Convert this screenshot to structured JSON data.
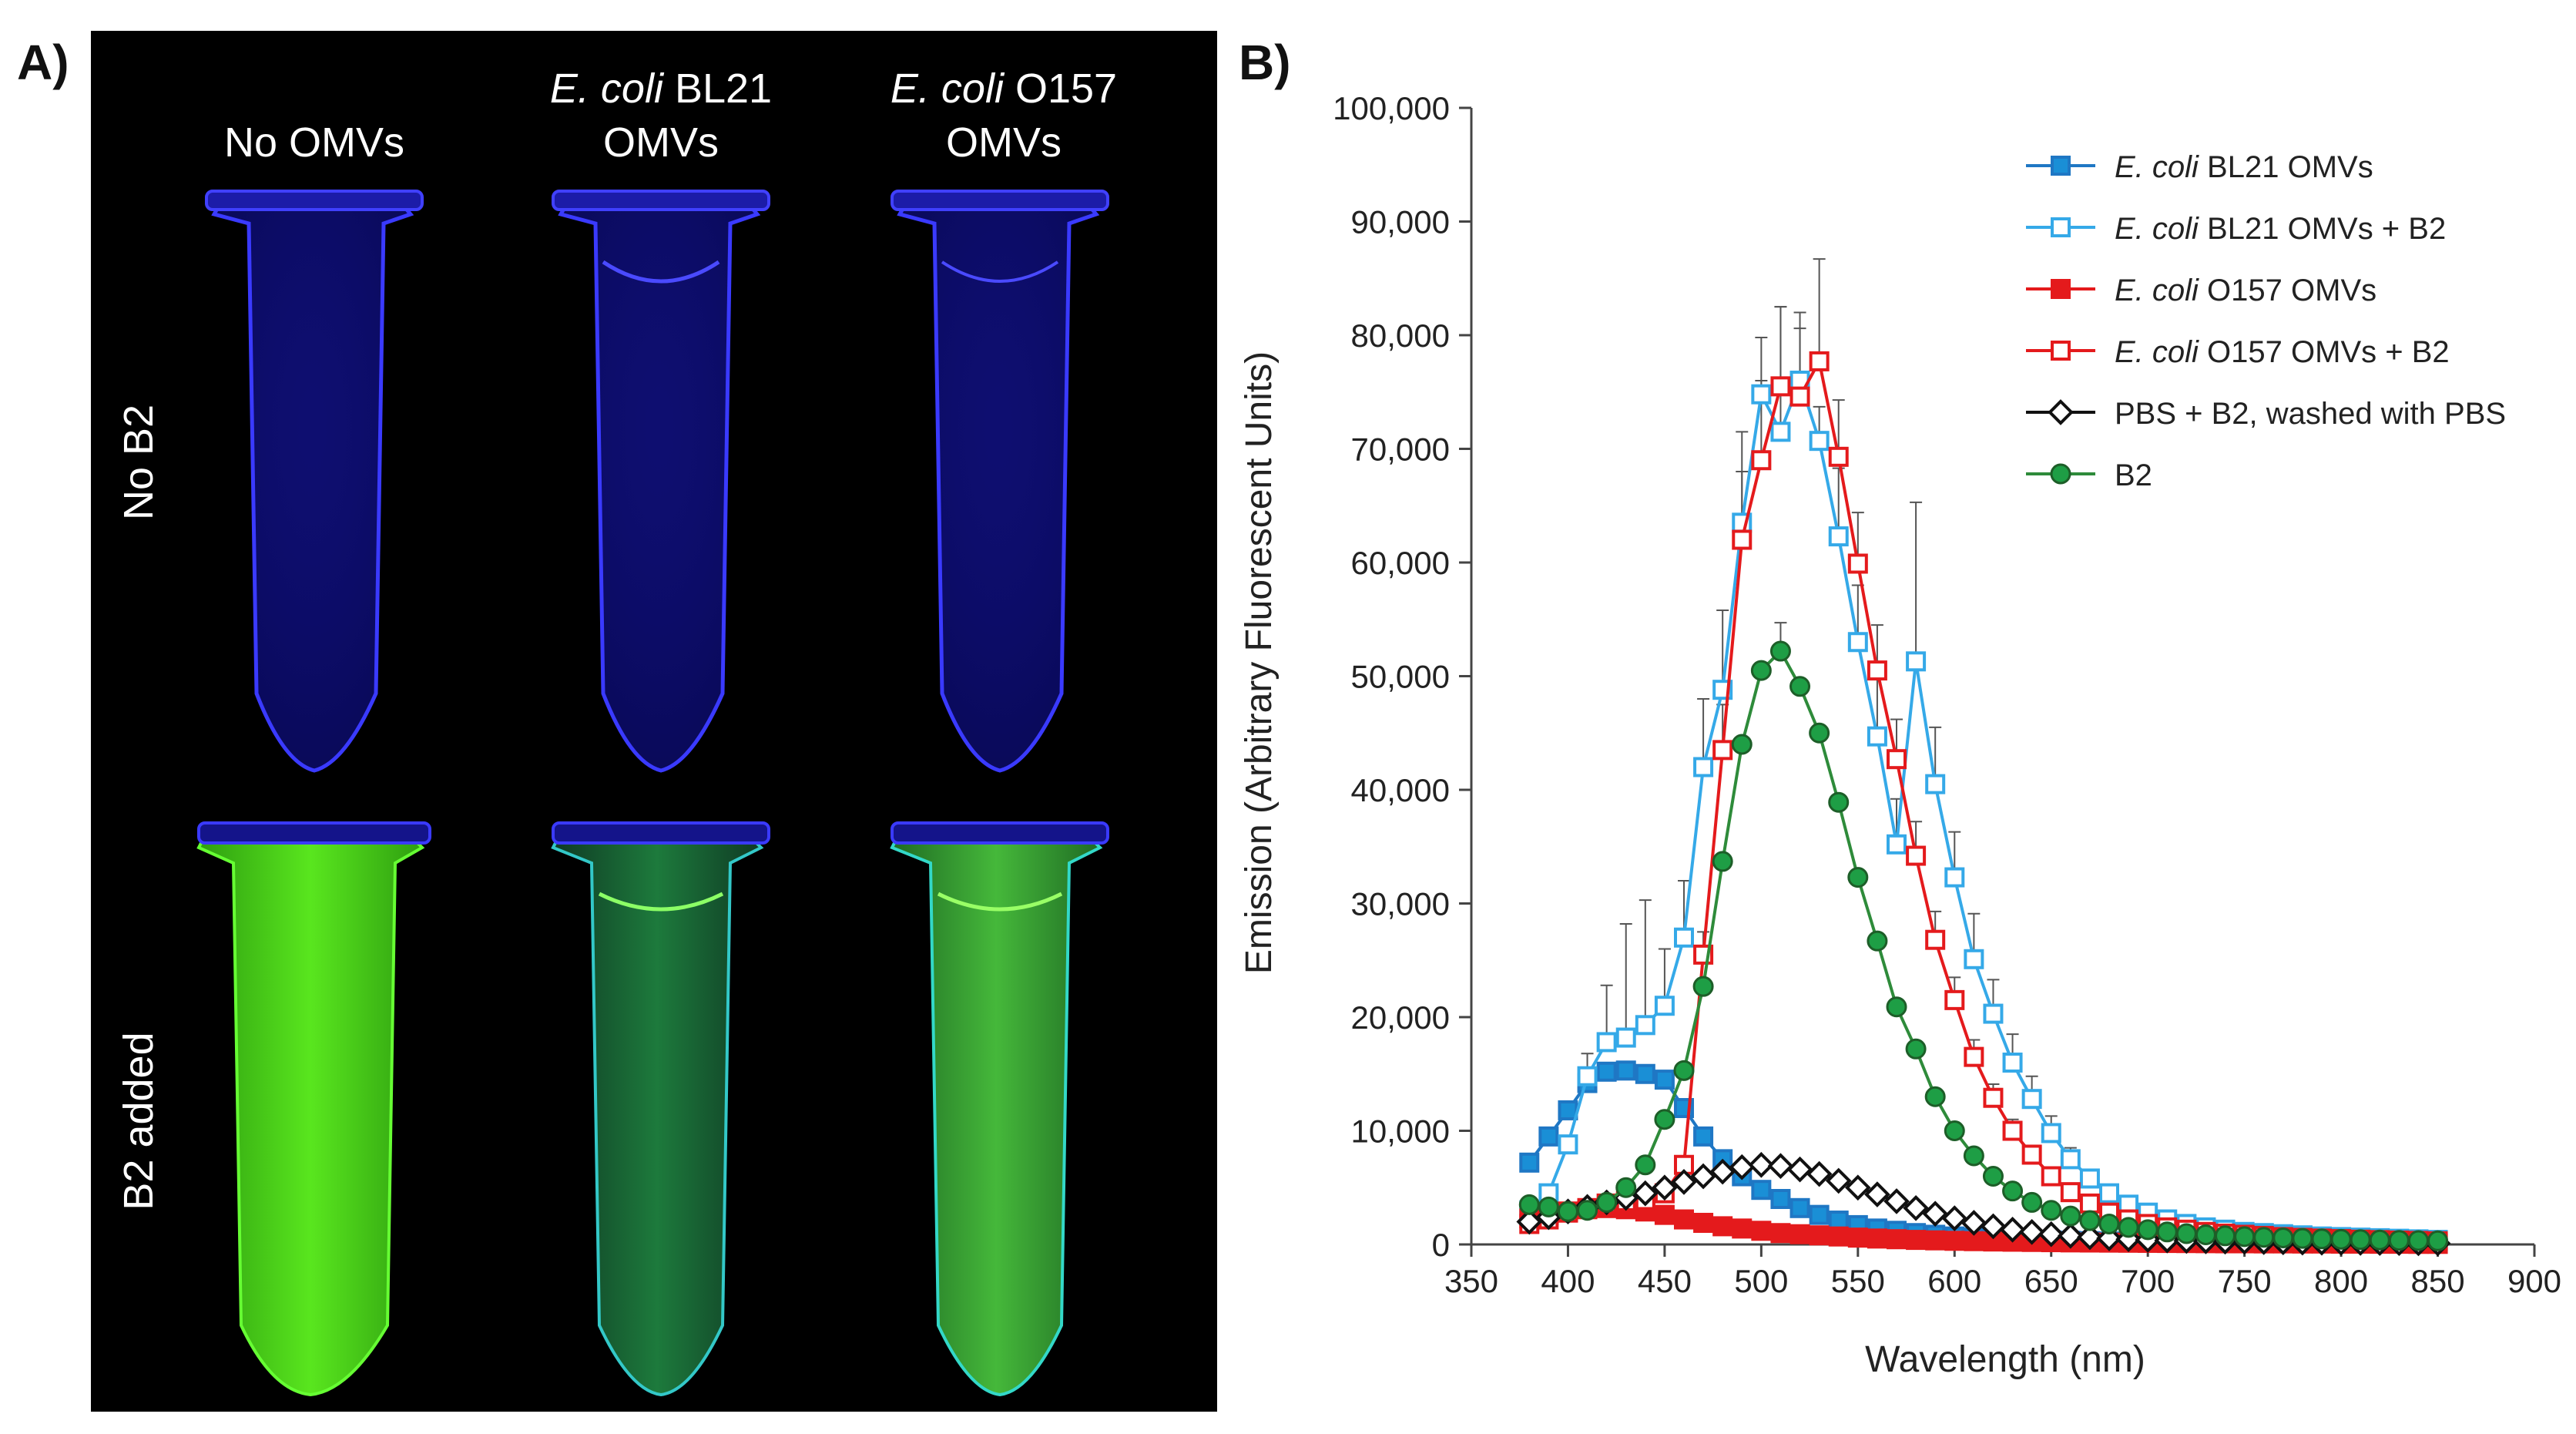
{
  "panel_a": {
    "label": "A)",
    "columns": [
      {
        "line1_italic": "",
        "line1_plain": "No OMVs",
        "line2": ""
      },
      {
        "line1_italic": "E. coli",
        "line1_plain": " BL21",
        "line2": "OMVs"
      },
      {
        "line1_italic": "E. coli",
        "line1_plain": " O157",
        "line2": "OMVs"
      }
    ],
    "rows": [
      "No B2",
      "B2 added"
    ]
  },
  "panel_b": {
    "label": "B)"
  },
  "chart_data": {
    "type": "line",
    "xlabel": "Wavelength (nm)",
    "ylabel": "Emission (Arbitrary Fluorescent Units)",
    "xlim": [
      350,
      900
    ],
    "ylim": [
      0,
      100000
    ],
    "xticks": [
      350,
      400,
      450,
      500,
      550,
      600,
      650,
      700,
      750,
      800,
      850,
      900
    ],
    "xtick_labels": [
      "350",
      "400",
      "450",
      "500",
      "550",
      "600",
      "650",
      "700",
      "750",
      "800",
      "850",
      "900"
    ],
    "yticks": [
      0,
      10000,
      20000,
      30000,
      40000,
      50000,
      60000,
      70000,
      80000,
      90000,
      100000
    ],
    "ytick_labels": [
      "0",
      "10,000",
      "20,000",
      "30,000",
      "40,000",
      "50,000",
      "60,000",
      "70,000",
      "80,000",
      "90,000",
      "100,000"
    ],
    "legend_position": "top-right",
    "x": [
      380,
      390,
      400,
      410,
      420,
      430,
      440,
      450,
      460,
      470,
      480,
      490,
      500,
      510,
      520,
      530,
      540,
      550,
      560,
      570,
      580,
      590,
      600,
      610,
      620,
      630,
      640,
      650,
      660,
      670,
      680,
      690,
      700,
      710,
      720,
      730,
      740,
      750,
      760,
      770,
      780,
      790,
      800,
      810,
      820,
      830,
      840,
      850
    ],
    "series": [
      {
        "name_italic": "E. coli",
        "name_rest": " BL21 OMVs",
        "color": "#1f77c4",
        "fill": "#1a8fd6",
        "marker": "square",
        "filled": true,
        "values": [
          7200,
          9500,
          11800,
          14200,
          15200,
          15300,
          15000,
          14500,
          12000,
          9500,
          7500,
          6000,
          4800,
          4000,
          3200,
          2600,
          2100,
          1700,
          1400,
          1200,
          1000,
          850,
          700,
          600,
          520,
          450,
          400,
          360,
          320,
          290,
          260,
          240,
          220,
          200,
          180,
          170,
          160,
          150,
          140,
          130,
          120,
          110,
          100,
          100,
          90,
          90,
          80,
          80
        ],
        "errors": []
      },
      {
        "name_italic": "E. coli",
        "name_rest": " BL21 OMVs + B2",
        "color": "#35a9e8",
        "fill": "#ffffff",
        "marker": "square",
        "filled": false,
        "values": [
          3000,
          4500,
          8800,
          14800,
          17800,
          18200,
          19300,
          21000,
          27000,
          42000,
          48800,
          63500,
          74800,
          71500,
          76000,
          70700,
          62300,
          53000,
          44700,
          35200,
          51300,
          40500,
          32300,
          25100,
          20300,
          16000,
          12800,
          9800,
          7500,
          5800,
          4500,
          3500,
          2800,
          2200,
          1800,
          1500,
          1300,
          1100,
          1000,
          900,
          800,
          700,
          650,
          600,
          550,
          500,
          450,
          400
        ],
        "errors": [
          0,
          0,
          0,
          2000,
          5000,
          10000,
          11000,
          5000,
          5000,
          6000,
          7000,
          8000,
          5000,
          11000,
          6000,
          3000,
          6000,
          5000,
          5000,
          4000,
          14000,
          5000,
          4000,
          4000,
          3000,
          2500,
          2000,
          1500,
          1000,
          800,
          600,
          500,
          0,
          0,
          0,
          0,
          0,
          0,
          0,
          0,
          0,
          0,
          0,
          0,
          0,
          0,
          0,
          0
        ]
      },
      {
        "name_italic": "E. coli",
        "name_rest": " O157 OMVs",
        "color": "#e41a1c",
        "fill": "#e41a1c",
        "marker": "square",
        "filled": true,
        "values": [
          2300,
          2600,
          2900,
          3100,
          3200,
          3100,
          2900,
          2600,
          2200,
          1900,
          1600,
          1400,
          1200,
          1000,
          900,
          800,
          700,
          600,
          520,
          460,
          400,
          360,
          320,
          290,
          260,
          240,
          220,
          200,
          180,
          170,
          160,
          150,
          140,
          130,
          120,
          110,
          100,
          100,
          90,
          90,
          80,
          80,
          70,
          70,
          60,
          60,
          50,
          50
        ],
        "errors": []
      },
      {
        "name_italic": "E. coli",
        "name_rest": " O157 OMVs + B2",
        "color": "#e41a1c",
        "fill": "#ffffff",
        "marker": "square",
        "filled": false,
        "values": [
          1800,
          2200,
          2800,
          3200,
          3600,
          3800,
          3900,
          4500,
          7000,
          25500,
          43500,
          62000,
          69000,
          75500,
          74600,
          77700,
          69300,
          59900,
          50500,
          42700,
          34200,
          26800,
          21500,
          16500,
          12900,
          10000,
          7900,
          6000,
          4600,
          3600,
          2800,
          2200,
          1800,
          1500,
          1300,
          1100,
          950,
          850,
          750,
          650,
          580,
          520,
          470,
          420,
          380,
          340,
          310,
          280
        ],
        "errors": [
          0,
          0,
          0,
          0,
          0,
          0,
          0,
          0,
          0,
          2000,
          4000,
          6000,
          7000,
          7000,
          6000,
          9000,
          5000,
          4500,
          4000,
          3500,
          3000,
          2500,
          2000,
          1500,
          1200,
          1000,
          800,
          600,
          500,
          400,
          300,
          0,
          0,
          0,
          0,
          0,
          0,
          0,
          0,
          0,
          0,
          0,
          0,
          0,
          0,
          0,
          0,
          0
        ]
      },
      {
        "name_italic": "",
        "name_rest": "PBS + B2, washed with PBS",
        "color": "#111111",
        "fill": "#ffffff",
        "marker": "diamond",
        "filled": false,
        "values": [
          2000,
          2400,
          2900,
          3300,
          3700,
          4100,
          4500,
          5000,
          5500,
          6000,
          6400,
          6800,
          7000,
          6900,
          6600,
          6200,
          5600,
          5000,
          4400,
          3800,
          3200,
          2700,
          2300,
          1900,
          1600,
          1300,
          1100,
          900,
          760,
          640,
          540,
          460,
          400,
          350,
          310,
          280,
          250,
          230,
          210,
          190,
          170,
          160,
          150,
          140,
          130,
          120,
          110,
          100
        ],
        "errors": []
      },
      {
        "name_italic": "",
        "name_rest": "B2",
        "color": "#2e8b3a",
        "fill": "#1e9e45",
        "marker": "circle",
        "filled": true,
        "values": [
          3500,
          3300,
          2900,
          3000,
          3700,
          5000,
          7000,
          11000,
          15300,
          22700,
          33700,
          44000,
          50500,
          52200,
          49100,
          45000,
          38900,
          32300,
          26700,
          20900,
          17200,
          13000,
          10000,
          7800,
          6000,
          4700,
          3700,
          3000,
          2500,
          2100,
          1800,
          1500,
          1300,
          1100,
          950,
          850,
          760,
          690,
          630,
          580,
          530,
          490,
          450,
          420,
          390,
          360,
          340,
          320
        ],
        "errors": [
          0,
          0,
          0,
          0,
          0,
          0,
          0,
          0,
          0,
          0,
          0,
          0,
          0,
          2500,
          0,
          0,
          0,
          0,
          0,
          0,
          0,
          0,
          0,
          0,
          0,
          0,
          0,
          0,
          0,
          0,
          0,
          0,
          0,
          0,
          0,
          0,
          0,
          0,
          0,
          0,
          0,
          0,
          0,
          0,
          0,
          0,
          0,
          0
        ]
      }
    ]
  }
}
